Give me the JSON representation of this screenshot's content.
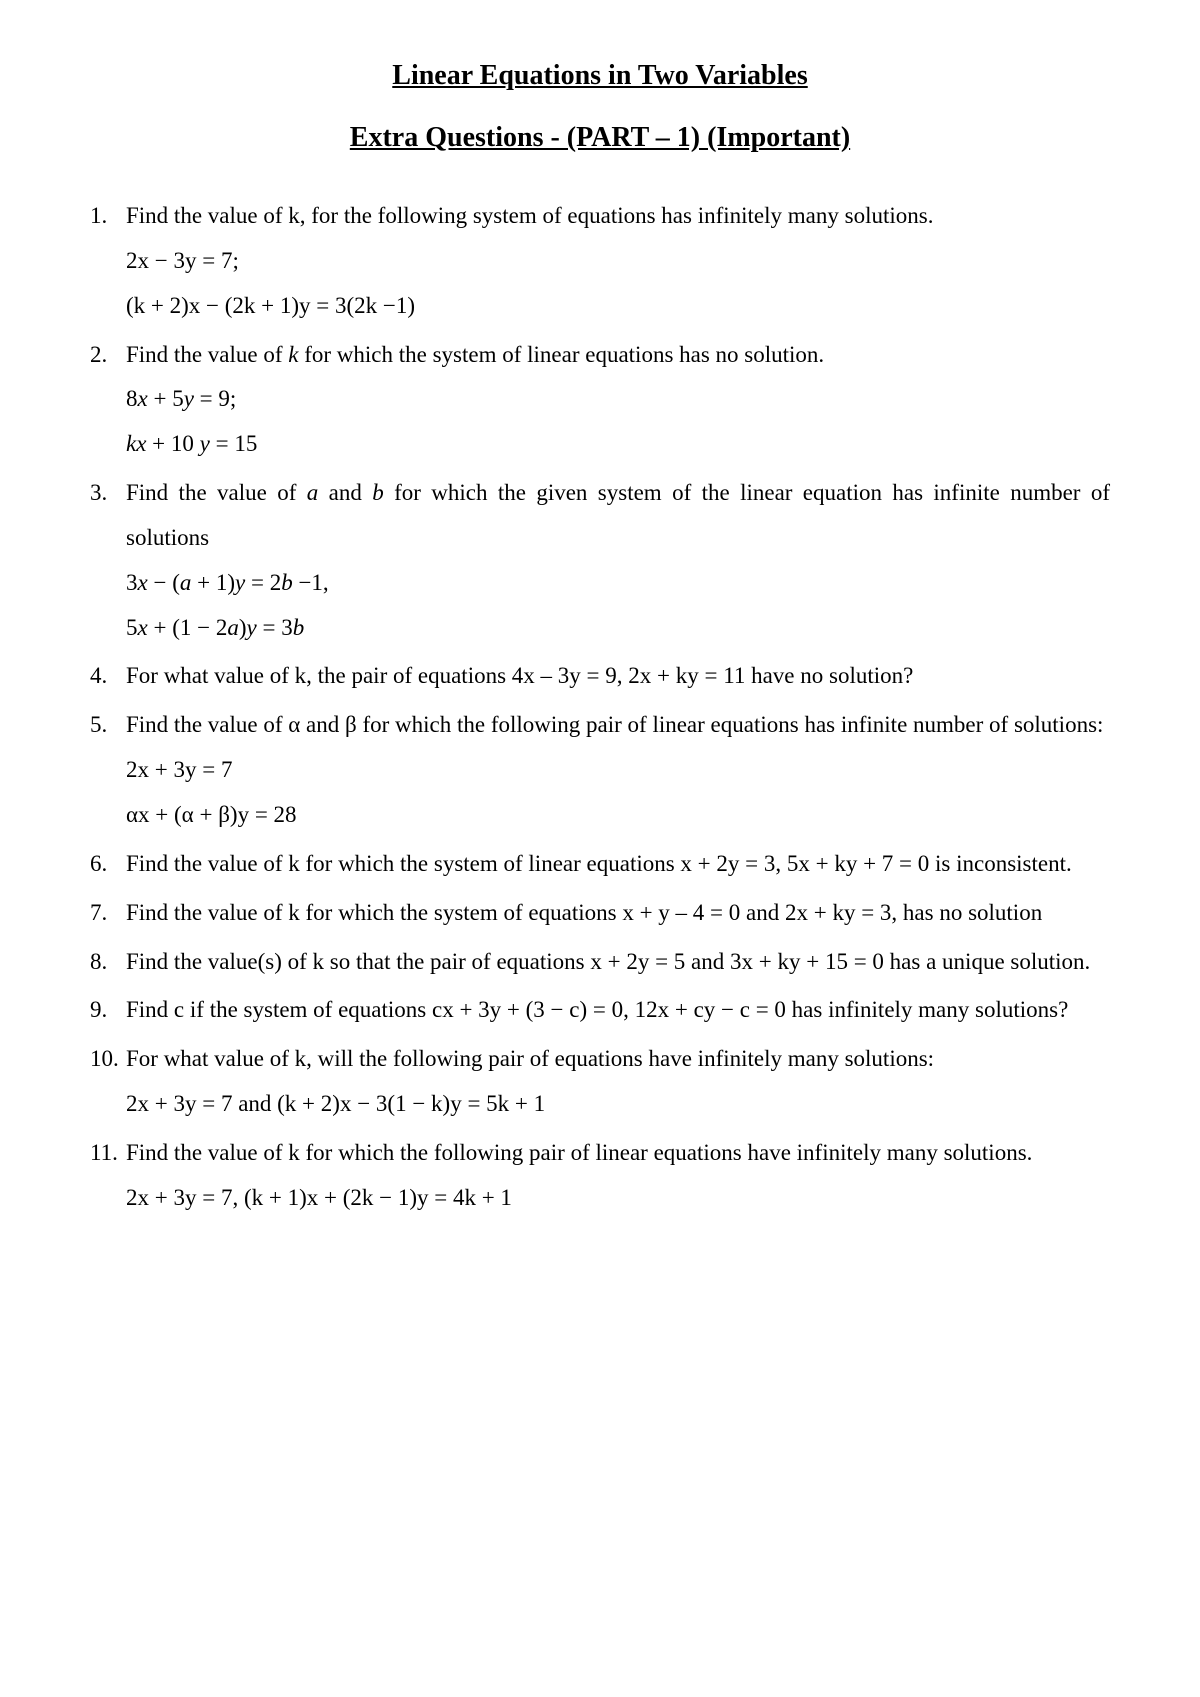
{
  "title": "Linear Equations in Two Variables",
  "subtitle": "Extra Questions  - (PART – 1) (Important)",
  "colors": {
    "background": "#ffffff",
    "text": "#000000"
  },
  "typography": {
    "font_family": "Times New Roman",
    "title_fontsize": 28,
    "title_weight": "bold",
    "body_fontsize": 23,
    "line_height": 1.95
  },
  "questions": [
    {
      "n": "1.",
      "text": "Find the value of k, for the following system of equations has infinitely many solutions.",
      "eq1": "2x − 3y = 7;",
      "eq2": "(k + 2)x − (2k + 1)y = 3(2k −1)"
    },
    {
      "n": "2.",
      "text_a": "Find the value of ",
      "k": "k",
      "text_b": " for which the system of linear equations has no solution.",
      "eq1_a": "8",
      "eq1_x": "x",
      "eq1_b": " + 5",
      "eq1_y": "y",
      "eq1_c": " = 9;",
      "eq2_kx": "kx",
      "eq2_a": " + 10 ",
      "eq2_y": "y",
      "eq2_b": " = 15"
    },
    {
      "n": "3.",
      "text_a": "Find the value of ",
      "a": "a",
      "text_b": " and ",
      "b": "b",
      "text_c": " for which the given system of the linear equation has infinite number of solutions",
      "eq1_a": "3",
      "eq1_x": "x",
      "eq1_b": " − (",
      "eq1_av": "a",
      "eq1_c": " + 1)",
      "eq1_y": "y",
      "eq1_d": " = 2",
      "eq1_bv": "b",
      "eq1_e": " −1,",
      "eq2_a": "5",
      "eq2_x": "x",
      "eq2_b": " + (1 − 2",
      "eq2_av": "a",
      "eq2_c": ")",
      "eq2_y": "y",
      "eq2_d": " = 3",
      "eq2_bv": "b"
    },
    {
      "n": "4.",
      "text": "For what value of k, the pair of equations 4x – 3y = 9, 2x + ky = 11 have no solution?"
    },
    {
      "n": "5.",
      "text": "Find the value of α and β for which the following pair of linear equations has infinite number of solutions:",
      "eq1": "2x + 3y = 7",
      "eq2": "αx + (α + β)y = 28"
    },
    {
      "n": "6.",
      "text": "Find the value of k for which the system of linear equations x + 2y = 3, 5x + ky + 7 = 0 is inconsistent."
    },
    {
      "n": "7.",
      "text": "Find the value of k for which the system of equations x + y – 4 = 0 and 2x + ky = 3, has no solution"
    },
    {
      "n": "8.",
      "text": "Find the value(s) of k so that the pair of equations x + 2y = 5 and 3x + ky + 15 = 0 has a unique solution."
    },
    {
      "n": "9.",
      "text": "Find c if the system of equations cx + 3y + (3 − c) = 0, 12x + cy − c = 0 has infinitely many solutions?"
    },
    {
      "n": "10.",
      "text": "For what value of k, will the following pair of equations have infinitely many solutions:",
      "eq1": "2x + 3y = 7 and (k + 2)x − 3(1 − k)y = 5k + 1"
    },
    {
      "n": "11.",
      "text": "Find the value of k for which the following pair of linear equations have infinitely many solutions.",
      "eq1": "2x + 3y = 7, (k + 1)x + (2k − 1)y = 4k + 1"
    }
  ]
}
